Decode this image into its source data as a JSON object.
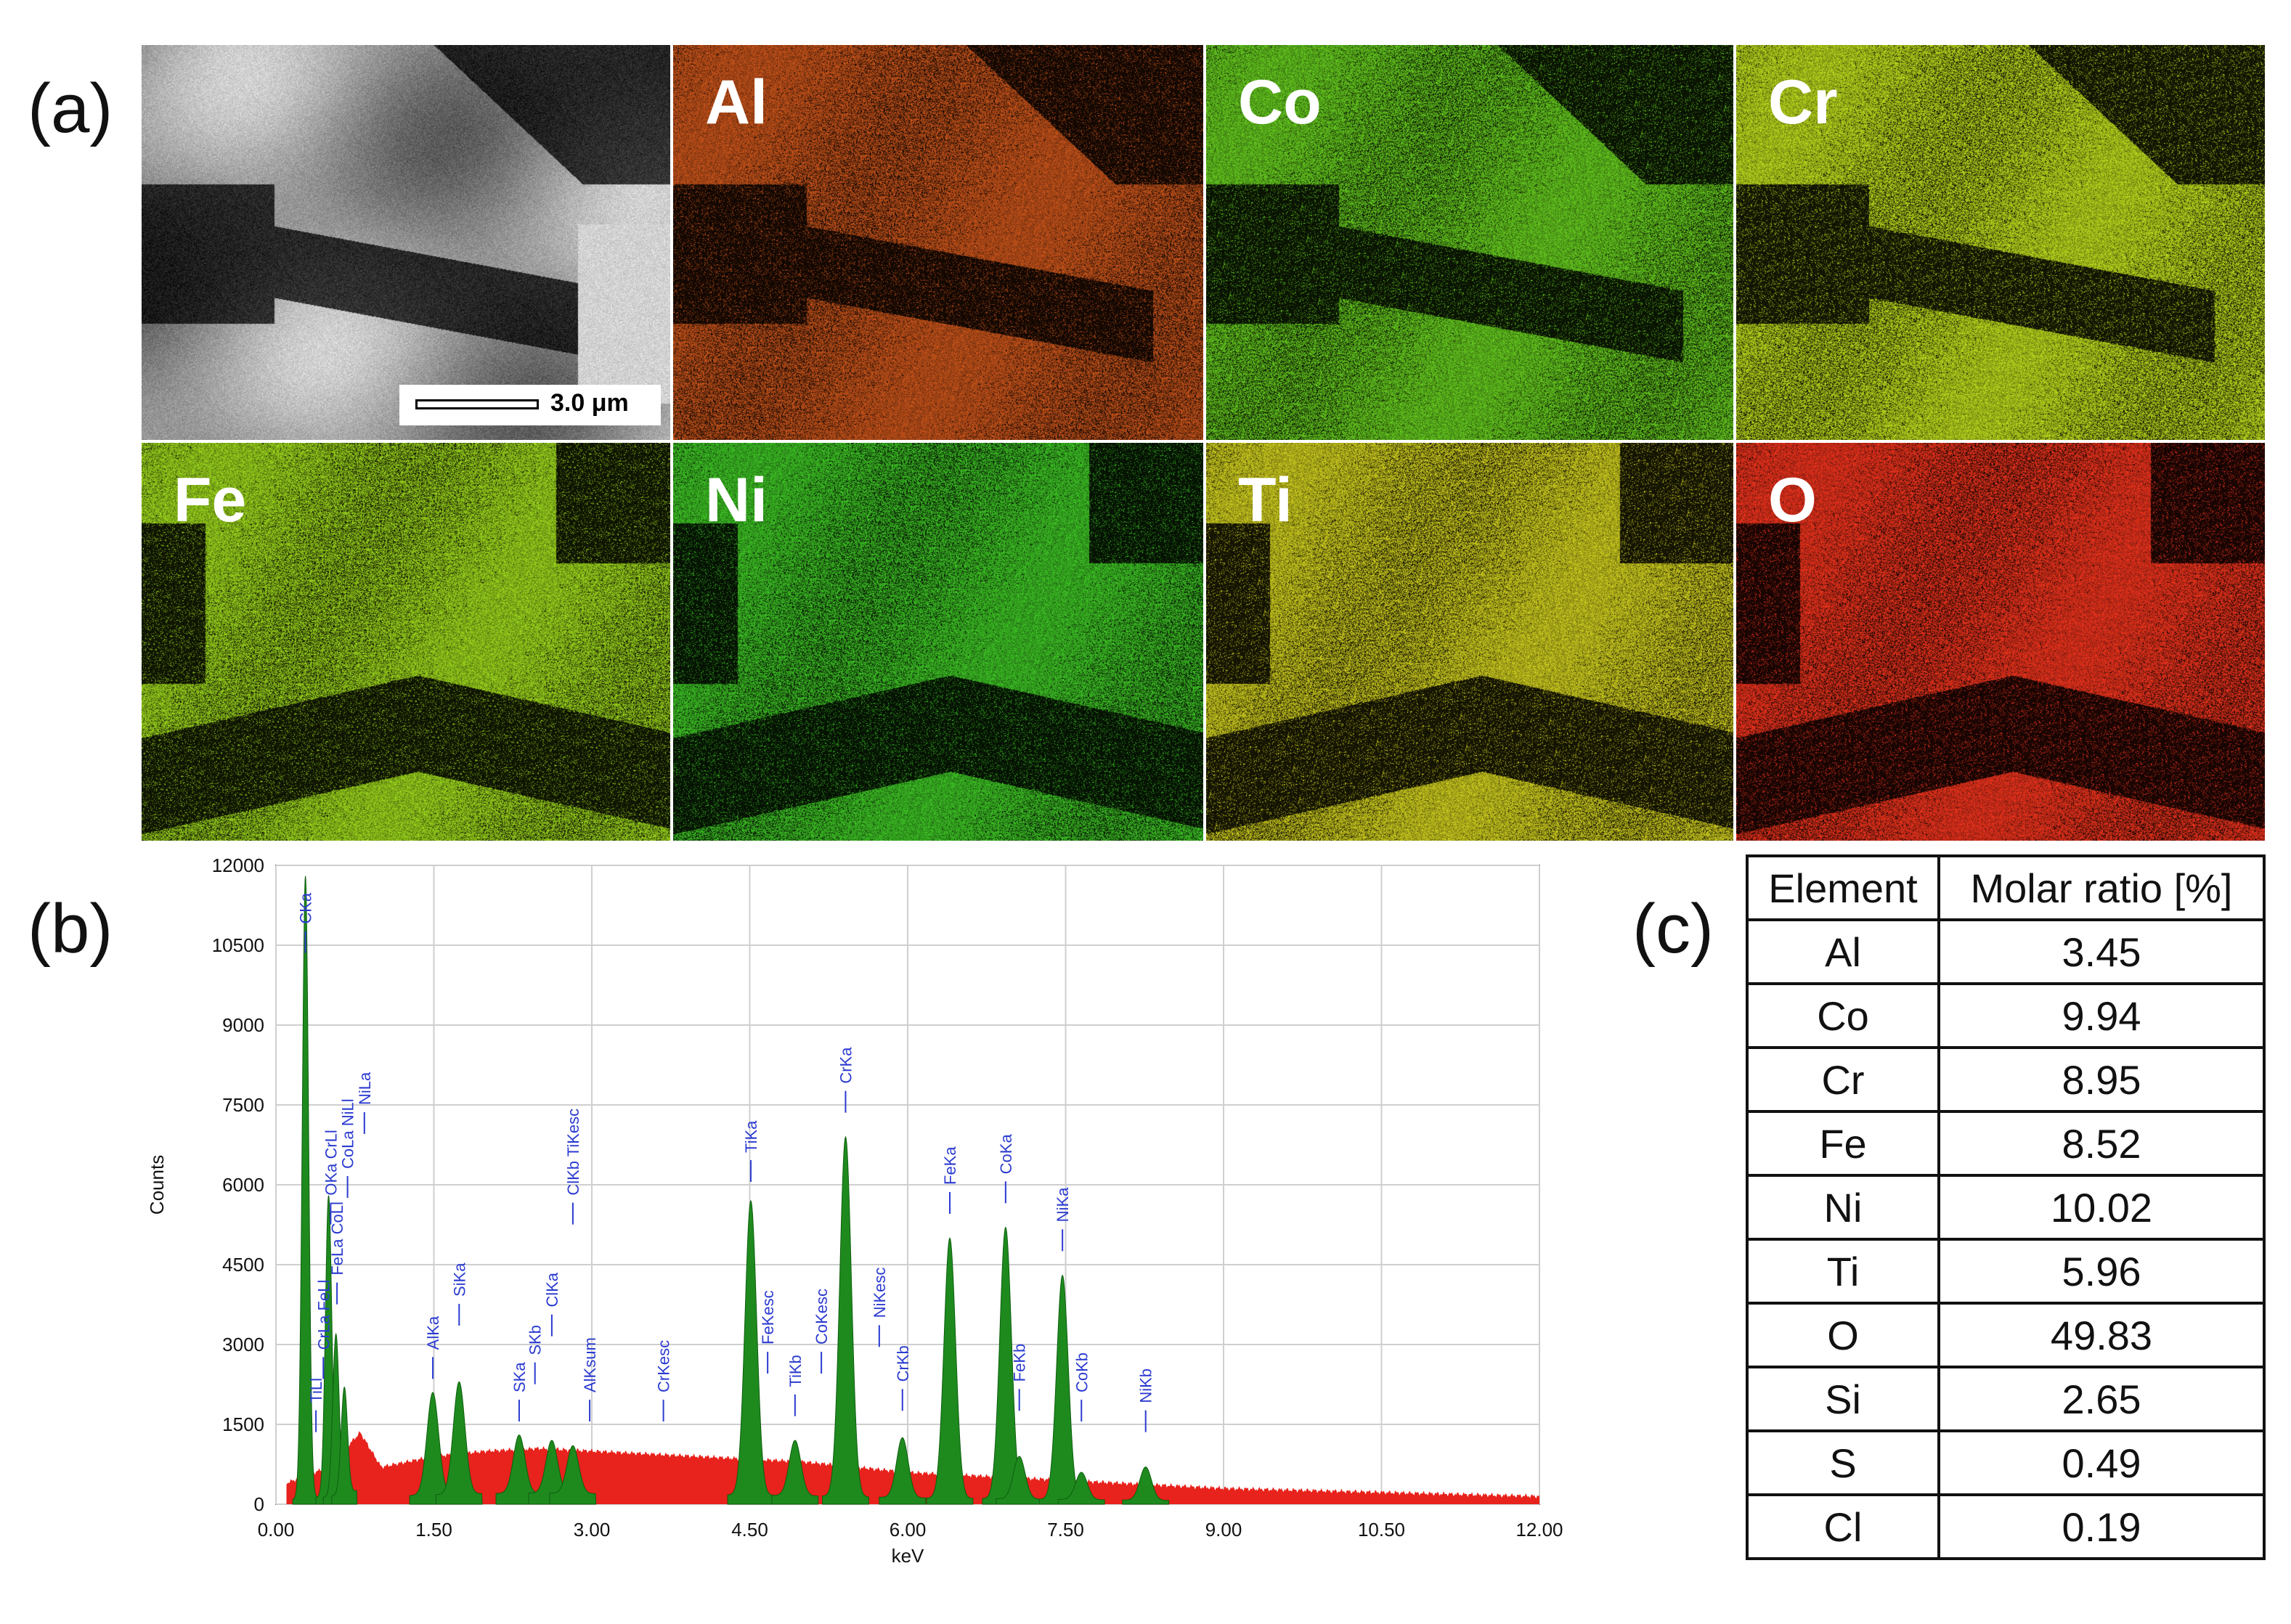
{
  "figure": {
    "panel_a": {
      "letter": "(a)",
      "scale_bar": "3.0 μm"
    },
    "panel_b": {
      "letter": "(b)"
    },
    "panel_c": {
      "letter": "(c)"
    }
  },
  "eds_maps": [
    {
      "element": "",
      "kind": "sem",
      "color": "#9a9a9a"
    },
    {
      "element": "Al",
      "kind": "map",
      "color": "#c4521a"
    },
    {
      "element": "Co",
      "kind": "map",
      "color": "#63c61e"
    },
    {
      "element": "Cr",
      "kind": "map",
      "color": "#b7d41c"
    },
    {
      "element": "Fe",
      "kind": "map",
      "color": "#99d21c"
    },
    {
      "element": "Ni",
      "kind": "map",
      "color": "#3cbf24"
    },
    {
      "element": "Ti",
      "kind": "map",
      "color": "#c9c81e"
    },
    {
      "element": "O",
      "kind": "map",
      "color": "#e8321c"
    }
  ],
  "chart_data": {
    "type": "area",
    "title": "",
    "xlabel": "keV",
    "ylabel": "Counts",
    "xlim": [
      0,
      12
    ],
    "ylim": [
      0,
      12000
    ],
    "x_ticks": [
      "0.00",
      "1.50",
      "3.00",
      "4.50",
      "6.00",
      "7.50",
      "9.00",
      "10.50",
      "12.00"
    ],
    "y_ticks": [
      "0",
      "1500",
      "3000",
      "4500",
      "6000",
      "7500",
      "9000",
      "10500",
      "12000"
    ],
    "series": [
      {
        "name": "background",
        "color": "#e8221c",
        "points": [
          [
            0.1,
            400
          ],
          [
            0.5,
            700
          ],
          [
            0.8,
            1350
          ],
          [
            1.0,
            700
          ],
          [
            1.5,
            900
          ],
          [
            2.0,
            1000
          ],
          [
            2.5,
            1050
          ],
          [
            3.0,
            1000
          ],
          [
            4.0,
            900
          ],
          [
            5.0,
            800
          ],
          [
            6.0,
            600
          ],
          [
            7.0,
            500
          ],
          [
            8.0,
            400
          ],
          [
            9.0,
            300
          ],
          [
            10.0,
            250
          ],
          [
            11.0,
            200
          ],
          [
            12.0,
            150
          ]
        ]
      },
      {
        "name": "peaks",
        "color": "#1e8a1e",
        "peaks": [
          {
            "x": 0.28,
            "y": 11800
          },
          {
            "x": 0.5,
            "y": 5800
          },
          {
            "x": 0.57,
            "y": 3200
          },
          {
            "x": 0.65,
            "y": 2200
          },
          {
            "x": 1.49,
            "y": 2100
          },
          {
            "x": 1.74,
            "y": 2300
          },
          {
            "x": 2.31,
            "y": 1300
          },
          {
            "x": 2.62,
            "y": 1200
          },
          {
            "x": 2.82,
            "y": 1100
          },
          {
            "x": 4.51,
            "y": 5700
          },
          {
            "x": 4.93,
            "y": 1200
          },
          {
            "x": 5.41,
            "y": 6900
          },
          {
            "x": 5.95,
            "y": 1250
          },
          {
            "x": 6.4,
            "y": 5000
          },
          {
            "x": 6.93,
            "y": 5200
          },
          {
            "x": 7.06,
            "y": 900
          },
          {
            "x": 7.47,
            "y": 4300
          },
          {
            "x": 7.65,
            "y": 600
          },
          {
            "x": 8.26,
            "y": 700
          }
        ]
      }
    ],
    "annotations": [
      {
        "text": "CKa",
        "x": 0.28,
        "y": 10900
      },
      {
        "text": "OKa CrLl",
        "x": 0.52,
        "y": 5800
      },
      {
        "text": "CoLa NiLl",
        "x": 0.68,
        "y": 6300
      },
      {
        "text": "NiLa",
        "x": 0.84,
        "y": 7500
      },
      {
        "text": "FeLa CoLl",
        "x": 0.58,
        "y": 4300
      },
      {
        "text": "CrLa FeLl",
        "x": 0.45,
        "y": 2900
      },
      {
        "text": "TiLl",
        "x": 0.38,
        "y": 1900
      },
      {
        "text": "AlKa",
        "x": 1.49,
        "y": 2900
      },
      {
        "text": "SiKa",
        "x": 1.74,
        "y": 3900
      },
      {
        "text": "SKa",
        "x": 2.31,
        "y": 2100
      },
      {
        "text": "SKb",
        "x": 2.46,
        "y": 2800
      },
      {
        "text": "ClKa",
        "x": 2.62,
        "y": 3700
      },
      {
        "text": "ClKb TiKesc",
        "x": 2.82,
        "y": 5800
      },
      {
        "text": "AlKsum",
        "x": 2.98,
        "y": 2100
      },
      {
        "text": "CrKesc",
        "x": 3.68,
        "y": 2100
      },
      {
        "text": "TiKa",
        "x": 4.51,
        "y": 6600
      },
      {
        "text": "FeKesc",
        "x": 4.67,
        "y": 3000
      },
      {
        "text": "TiKb",
        "x": 4.93,
        "y": 2200
      },
      {
        "text": "CoKesc",
        "x": 5.18,
        "y": 3000
      },
      {
        "text": "CrKa",
        "x": 5.41,
        "y": 7900
      },
      {
        "text": "NiKesc",
        "x": 5.73,
        "y": 3500
      },
      {
        "text": "CrKb",
        "x": 5.95,
        "y": 2300
      },
      {
        "text": "FeKa",
        "x": 6.4,
        "y": 6000
      },
      {
        "text": "CoKa",
        "x": 6.93,
        "y": 6200
      },
      {
        "text": "FeKb",
        "x": 7.06,
        "y": 2300
      },
      {
        "text": "NiKa",
        "x": 7.47,
        "y": 5300
      },
      {
        "text": "CoKb",
        "x": 7.65,
        "y": 2100
      },
      {
        "text": "NiKb",
        "x": 8.26,
        "y": 1900
      }
    ]
  },
  "table": {
    "headers": [
      "Element",
      "Molar ratio [%]"
    ],
    "rows": [
      [
        "Al",
        "3.45"
      ],
      [
        "Co",
        "9.94"
      ],
      [
        "Cr",
        "8.95"
      ],
      [
        "Fe",
        "8.52"
      ],
      [
        "Ni",
        "10.02"
      ],
      [
        "Ti",
        "5.96"
      ],
      [
        "O",
        "49.83"
      ],
      [
        "Si",
        "2.65"
      ],
      [
        "S",
        "0.49"
      ],
      [
        "Cl",
        "0.19"
      ]
    ]
  }
}
